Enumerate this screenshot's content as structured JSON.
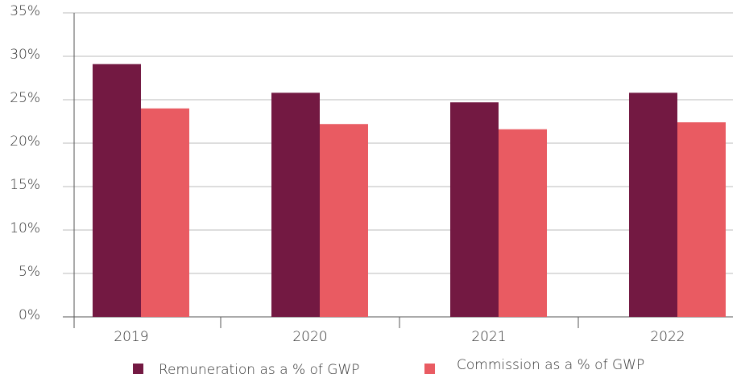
{
  "chart_data": {
    "type": "bar",
    "categories": [
      "2019",
      "2020",
      "2021",
      "2022"
    ],
    "series": [
      {
        "name": "Remuneration as a % of GWP",
        "color": "#731942",
        "values": [
          29.1,
          25.8,
          24.7,
          25.8
        ]
      },
      {
        "name": "Commission as a % of GWP",
        "color": "#e95b62",
        "values": [
          24.0,
          22.2,
          21.6,
          22.4
        ]
      }
    ],
    "ylim": [
      0,
      35
    ],
    "yticks": [
      {
        "value": 0,
        "label": "0%"
      },
      {
        "value": 5,
        "label": "5%"
      },
      {
        "value": 10,
        "label": "10%"
      },
      {
        "value": 15,
        "label": "15%"
      },
      {
        "value": 20,
        "label": "20%"
      },
      {
        "value": 25,
        "label": "25%"
      },
      {
        "value": 30,
        "label": "30%"
      },
      {
        "value": 35,
        "label": "35%"
      }
    ],
    "grid": true,
    "legend": "bottom"
  }
}
